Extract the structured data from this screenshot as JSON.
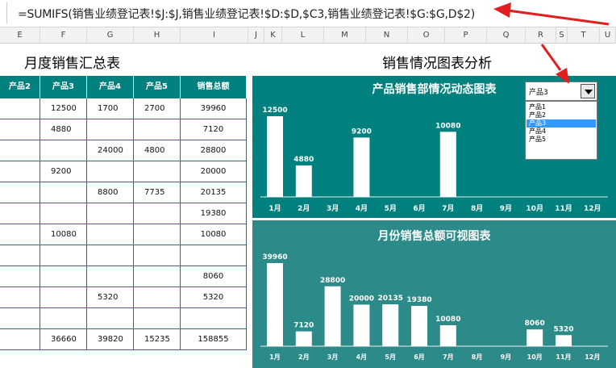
{
  "formula_bar": {
    "formula": "=SUMIFS(销售业绩登记表!$J:$J,销售业绩登记表!$D:$D,$C3,销售业绩登记表!$G:$G,D$2)"
  },
  "column_headers": [
    "E",
    "F",
    "G",
    "H",
    "I",
    "J",
    "K",
    "L",
    "M",
    "N",
    "O",
    "P",
    "Q",
    "R",
    "S",
    "T",
    "U"
  ],
  "left_title": "月度销售汇总表",
  "right_title": "销售情况图表分析",
  "table": {
    "headers": [
      "产品2",
      "产品3",
      "产品4",
      "产品5",
      "销售总额"
    ],
    "rows": [
      [
        "",
        "12500",
        "1700",
        "2700",
        "39960"
      ],
      [
        "",
        "4880",
        "",
        "",
        "7120"
      ],
      [
        "",
        "",
        "24000",
        "4800",
        "28800"
      ],
      [
        "",
        "9200",
        "",
        "",
        "20000"
      ],
      [
        "",
        "",
        "8800",
        "7735",
        "20135"
      ],
      [
        "",
        "",
        "",
        "",
        "19380"
      ],
      [
        "",
        "10080",
        "",
        "",
        "10080"
      ],
      [
        "",
        "",
        "",
        "",
        ""
      ],
      [
        "",
        "",
        "",
        "",
        "8060"
      ],
      [
        "",
        "",
        "5320",
        "",
        "5320"
      ],
      [
        "",
        "",
        "",
        "",
        ""
      ],
      [
        "",
        "36660",
        "39820",
        "15235",
        "158855"
      ]
    ]
  },
  "dropdown": {
    "selected": "产品3",
    "options": [
      "产品1",
      "产品2",
      "产品3",
      "产品4",
      "产品5"
    ]
  },
  "colors": {
    "teal": "#00807f",
    "teal_light": "#2c8a89",
    "bar": "#ffffff",
    "select_blue": "#3399ff"
  },
  "chart_data": [
    {
      "type": "bar",
      "title": "产品销售部情况动态图表",
      "categories": [
        "1月",
        "2月",
        "3月",
        "4月",
        "5月",
        "6月",
        "7月",
        "8月",
        "9月",
        "10月",
        "11月",
        "12月"
      ],
      "values": [
        12500,
        4880,
        null,
        9200,
        null,
        null,
        10080,
        null,
        null,
        null,
        null,
        null
      ],
      "labels": [
        "12500",
        "4880",
        "",
        "9200",
        "",
        "",
        "10080",
        "",
        "",
        "",
        "",
        ""
      ]
    },
    {
      "type": "bar",
      "title": "月份销售总额可视图表",
      "categories": [
        "1月",
        "2月",
        "3月",
        "4月",
        "5月",
        "6月",
        "7月",
        "8月",
        "9月",
        "10月",
        "11月",
        "12月"
      ],
      "values": [
        39960,
        7120,
        28800,
        20000,
        20135,
        19380,
        10080,
        null,
        null,
        8060,
        5320,
        null
      ],
      "labels": [
        "39960",
        "7120",
        "28800",
        "20000",
        "20135",
        "19380",
        "10080",
        "",
        "",
        "8060",
        "5320",
        ""
      ]
    }
  ]
}
